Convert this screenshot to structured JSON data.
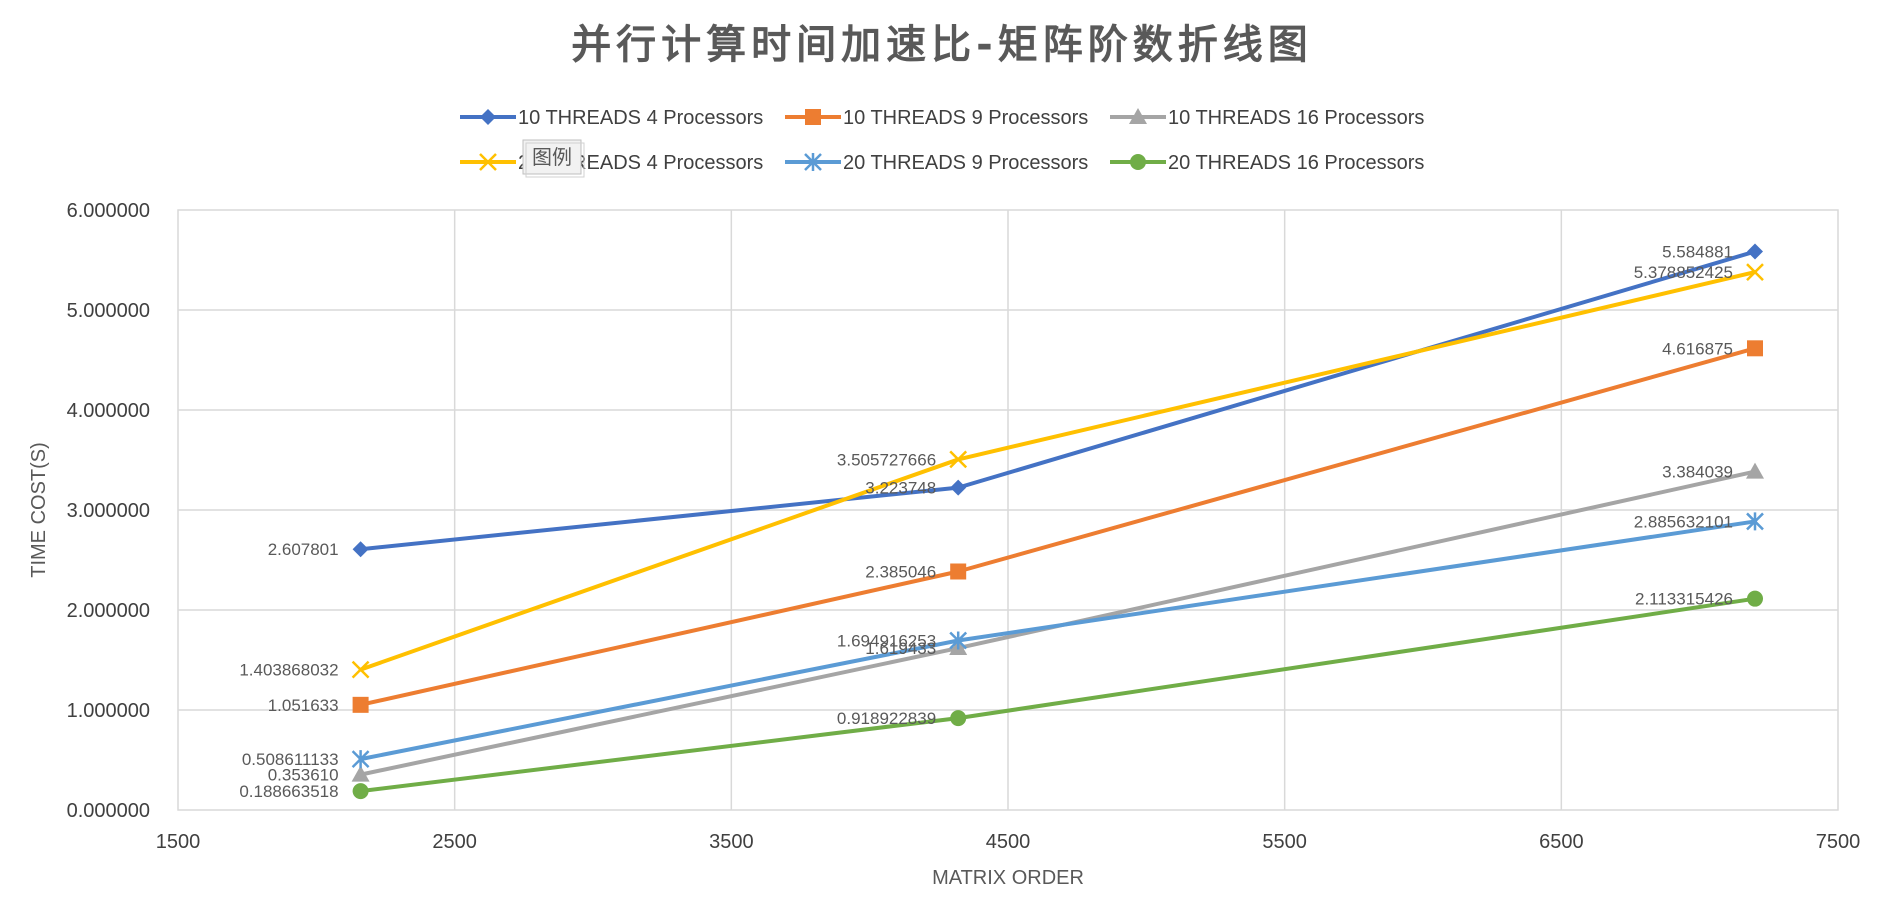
{
  "chart_data": {
    "type": "line",
    "title": "并行计算时间加速比-矩阵阶数折线图",
    "xlabel": "MATRIX ORDER",
    "ylabel": "TIME COST(S)",
    "xlim": [
      1500,
      7500
    ],
    "ylim": [
      0,
      6
    ],
    "x_ticks": [
      "1500",
      "2500",
      "3500",
      "4500",
      "5500",
      "6500",
      "7500"
    ],
    "y_ticks": [
      "0.000000",
      "1.000000",
      "2.000000",
      "3.000000",
      "4.000000",
      "5.000000",
      "6.000000"
    ],
    "grid": true,
    "legend_position": "top",
    "legend_tag": "图例",
    "x": [
      2160,
      4320,
      7200
    ],
    "series": [
      {
        "name": "10 THREADS 4 Processors",
        "color": "#4472C4",
        "marker": "diamond",
        "values": [
          2.607801,
          3.223748,
          5.584881
        ],
        "labels": [
          "2.607801",
          "3.223748",
          "5.584881"
        ]
      },
      {
        "name": "10 THREADS 9 Processors",
        "color": "#ED7D31",
        "marker": "square",
        "values": [
          1.051633,
          2.385046,
          4.616875
        ],
        "labels": [
          "1.051633",
          "2.385046",
          "4.616875"
        ]
      },
      {
        "name": "10 THREADS 16 Processors",
        "color": "#A5A5A5",
        "marker": "triangle",
        "values": [
          0.35361,
          1.619433,
          3.384039
        ],
        "labels": [
          "0.353610",
          "1.619433",
          "3.384039"
        ]
      },
      {
        "name": "20 THREADS 4 Processors",
        "color": "#FFC000",
        "marker": "x",
        "values": [
          1.403868032,
          3.505727666,
          5.378852425
        ],
        "labels": [
          "1.403868032",
          "3.505727666",
          "5.378852425"
        ]
      },
      {
        "name": "20 THREADS 9 Processors",
        "color": "#5B9BD5",
        "marker": "star",
        "values": [
          0.508611133,
          1.694916253,
          2.885632101
        ],
        "labels": [
          "0.508611133",
          "1.694916253",
          "2.885632101"
        ]
      },
      {
        "name": "20 THREADS 16 Processors",
        "color": "#70AD47",
        "marker": "circle",
        "values": [
          0.188663518,
          0.918922839,
          2.113315426
        ],
        "labels": [
          "0.188663518",
          "0.918922839",
          "2.113315426"
        ]
      }
    ]
  }
}
